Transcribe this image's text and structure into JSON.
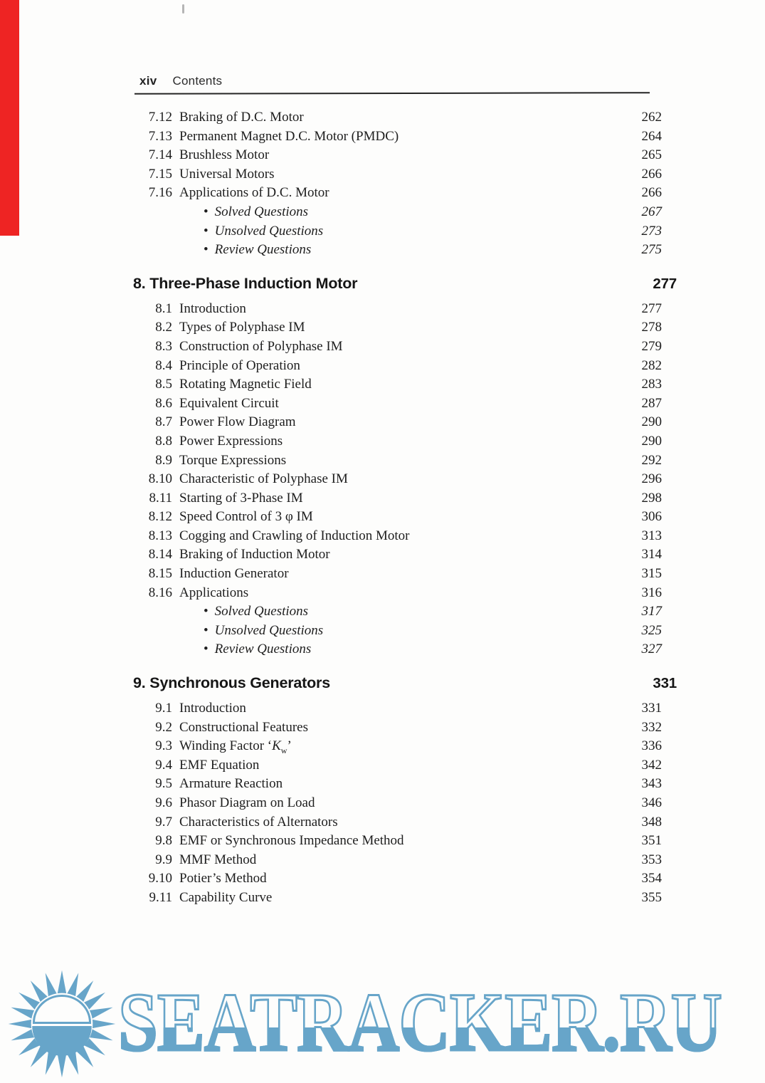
{
  "page": {
    "folio": "xiv",
    "header": "Contents"
  },
  "artifacts": {
    "red_stripe_color": "#ee2423"
  },
  "watermark": {
    "text": "SEATRACKER.RU",
    "color": "#67a5c9",
    "icon": "sun-icon"
  },
  "sections": [
    {
      "number": "",
      "title": "",
      "page": "",
      "entries": [
        {
          "num": "7.12",
          "title": "Braking of D.C. Motor",
          "page": "262"
        },
        {
          "num": "7.13",
          "title": "Permanent Magnet D.C. Motor (PMDC)",
          "page": "264"
        },
        {
          "num": "7.14",
          "title": "Brushless Motor",
          "page": "265"
        },
        {
          "num": "7.15",
          "title": "Universal Motors",
          "page": "266"
        },
        {
          "num": "7.16",
          "title": "Applications of D.C. Motor",
          "page": "266"
        },
        {
          "num": "",
          "bullet": true,
          "title": "Solved Questions",
          "page": "267"
        },
        {
          "num": "",
          "bullet": true,
          "title": "Unsolved Questions",
          "page": "273"
        },
        {
          "num": "",
          "bullet": true,
          "title": "Review Questions",
          "page": "275"
        }
      ]
    },
    {
      "number": "8.",
      "title": "Three-Phase Induction Motor",
      "page": "277",
      "entries": [
        {
          "num": "8.1",
          "title": "Introduction",
          "page": "277"
        },
        {
          "num": "8.2",
          "title": "Types of Polyphase IM",
          "page": "278"
        },
        {
          "num": "8.3",
          "title": "Construction of Polyphase IM",
          "page": "279"
        },
        {
          "num": "8.4",
          "title": "Principle of Operation",
          "page": "282"
        },
        {
          "num": "8.5",
          "title": "Rotating Magnetic Field",
          "page": "283"
        },
        {
          "num": "8.6",
          "title": "Equivalent Circuit",
          "page": "287"
        },
        {
          "num": "8.7",
          "title": "Power Flow Diagram",
          "page": "290"
        },
        {
          "num": "8.8",
          "title": "Power Expressions",
          "page": "290"
        },
        {
          "num": "8.9",
          "title": "Torque Expressions",
          "page": "292"
        },
        {
          "num": "8.10",
          "title": "Characteristic of Polyphase IM",
          "page": "296"
        },
        {
          "num": "8.11",
          "title": "Starting of 3-Phase IM",
          "page": "298"
        },
        {
          "num": "8.12",
          "title": "Speed Control of 3 φ IM",
          "page": "306"
        },
        {
          "num": "8.13",
          "title": "Cogging and Crawling of Induction Motor",
          "page": "313"
        },
        {
          "num": "8.14",
          "title": "Braking of Induction Motor",
          "page": "314"
        },
        {
          "num": "8.15",
          "title": "Induction Generator",
          "page": "315"
        },
        {
          "num": "8.16",
          "title": "Applications",
          "page": "316"
        },
        {
          "num": "",
          "bullet": true,
          "title": "Solved Questions",
          "page": "317"
        },
        {
          "num": "",
          "bullet": true,
          "title": "Unsolved Questions",
          "page": "325"
        },
        {
          "num": "",
          "bullet": true,
          "title": "Review Questions",
          "page": "327"
        }
      ]
    },
    {
      "number": "9.",
      "title": "Synchronous Generators",
      "page": "331",
      "entries": [
        {
          "num": "9.1",
          "title": "Introduction",
          "page": "331"
        },
        {
          "num": "9.2",
          "title": "Constructional Features",
          "page": "332"
        },
        {
          "num": "9.3",
          "title": "Winding Factor ‘Kw’",
          "title_html": "Winding Factor ‘<i>K</i><sub>w</sub>’",
          "page": "336"
        },
        {
          "num": "9.4",
          "title": "EMF Equation",
          "page": "342"
        },
        {
          "num": "9.5",
          "title": "Armature Reaction",
          "page": "343"
        },
        {
          "num": "9.6",
          "title": "Phasor Diagram on Load",
          "page": "346"
        },
        {
          "num": "9.7",
          "title": "Characteristics of Alternators",
          "page": "348"
        },
        {
          "num": "9.8",
          "title": "EMF or Synchronous Impedance Method",
          "page": "351"
        },
        {
          "num": "9.9",
          "title": "MMF Method",
          "page": "353"
        },
        {
          "num": "9.10",
          "title": "Potier’s Method",
          "page": "354"
        },
        {
          "num": "9.11",
          "title": "Capability Curve",
          "page": "355"
        }
      ]
    }
  ]
}
